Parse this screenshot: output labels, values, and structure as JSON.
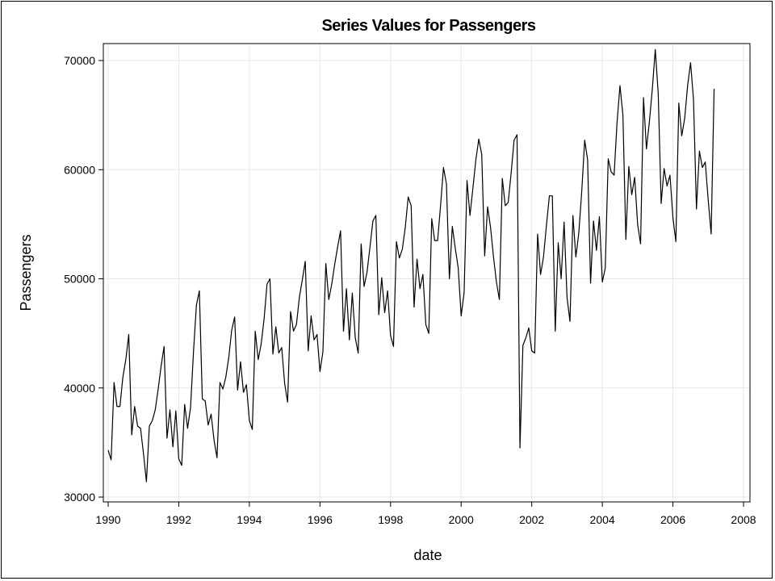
{
  "chart_data": {
    "type": "line",
    "title": "Series Values for Passengers",
    "xlabel": "date",
    "ylabel": "Passengers",
    "xlim": [
      1990,
      2008
    ],
    "ylim": [
      30000,
      70000
    ],
    "x_ticks": [
      "1990",
      "1992",
      "1994",
      "1996",
      "1998",
      "2000",
      "2002",
      "2004",
      "2006",
      "2008"
    ],
    "y_ticks": [
      "30000",
      "40000",
      "50000",
      "60000",
      "70000"
    ],
    "grid": true,
    "line_color": "#000000",
    "grid_color": "#e6e6e6",
    "series": [
      {
        "start": "1990-01",
        "frequency": "monthly",
        "values": [
          34300,
          33400,
          40500,
          38300,
          38300,
          41000,
          42600,
          44900,
          35700,
          38300,
          36500,
          36300,
          34000,
          31400,
          36500,
          37000,
          38000,
          39900,
          42000,
          43800,
          35400,
          38000,
          34600,
          37900,
          33500,
          32900,
          38500,
          36300,
          38200,
          43300,
          47600,
          48900,
          39000,
          38800,
          36600,
          37600,
          35200,
          33600,
          40500,
          39900,
          41000,
          42800,
          45300,
          46500,
          39800,
          42400,
          39600,
          40300,
          37000,
          36200,
          45200,
          42600,
          44000,
          46300,
          49500,
          50000,
          43100,
          45600,
          43200,
          43700,
          40400,
          38700,
          47000,
          45200,
          45800,
          48300,
          49900,
          51600,
          43400,
          46600,
          44400,
          44900,
          41500,
          43300,
          51400,
          48100,
          49500,
          51300,
          52900,
          54400,
          45200,
          49100,
          44400,
          48700,
          44600,
          43200,
          53200,
          49300,
          50600,
          52900,
          55300,
          55800,
          46700,
          50100,
          46900,
          48900,
          44800,
          43800,
          53400,
          51900,
          52700,
          54700,
          57500,
          56700,
          47400,
          51800,
          49100,
          50400,
          45800,
          45000,
          55500,
          53500,
          53500,
          56700,
          60200,
          58700,
          50000,
          54800,
          52800,
          51000,
          46600,
          48700,
          59000,
          55800,
          58300,
          60900,
          62800,
          61400,
          52100,
          56600,
          54700,
          52000,
          49700,
          48100,
          59200,
          56700,
          57000,
          59700,
          62700,
          63200,
          34500,
          43900,
          44600,
          45500,
          43400,
          43200,
          54100,
          50400,
          52000,
          54900,
          57600,
          57600,
          45200,
          53300,
          50000,
          55200,
          48300,
          46100,
          55800,
          52000,
          54200,
          58000,
          62700,
          60900,
          49600,
          55300,
          52600,
          55700,
          49700,
          51000,
          61000,
          59800,
          59500,
          64300,
          67700,
          65000,
          53600,
          60300,
          57700,
          59300,
          55000,
          53200,
          66600,
          61900,
          64400,
          67400,
          71000,
          67000,
          56900,
          60100,
          58500,
          59500,
          55600,
          53400,
          66100,
          63100,
          64700,
          67700,
          69800,
          66400,
          56400,
          61700,
          60200,
          60700,
          57200,
          54100,
          67400
        ]
      }
    ]
  }
}
